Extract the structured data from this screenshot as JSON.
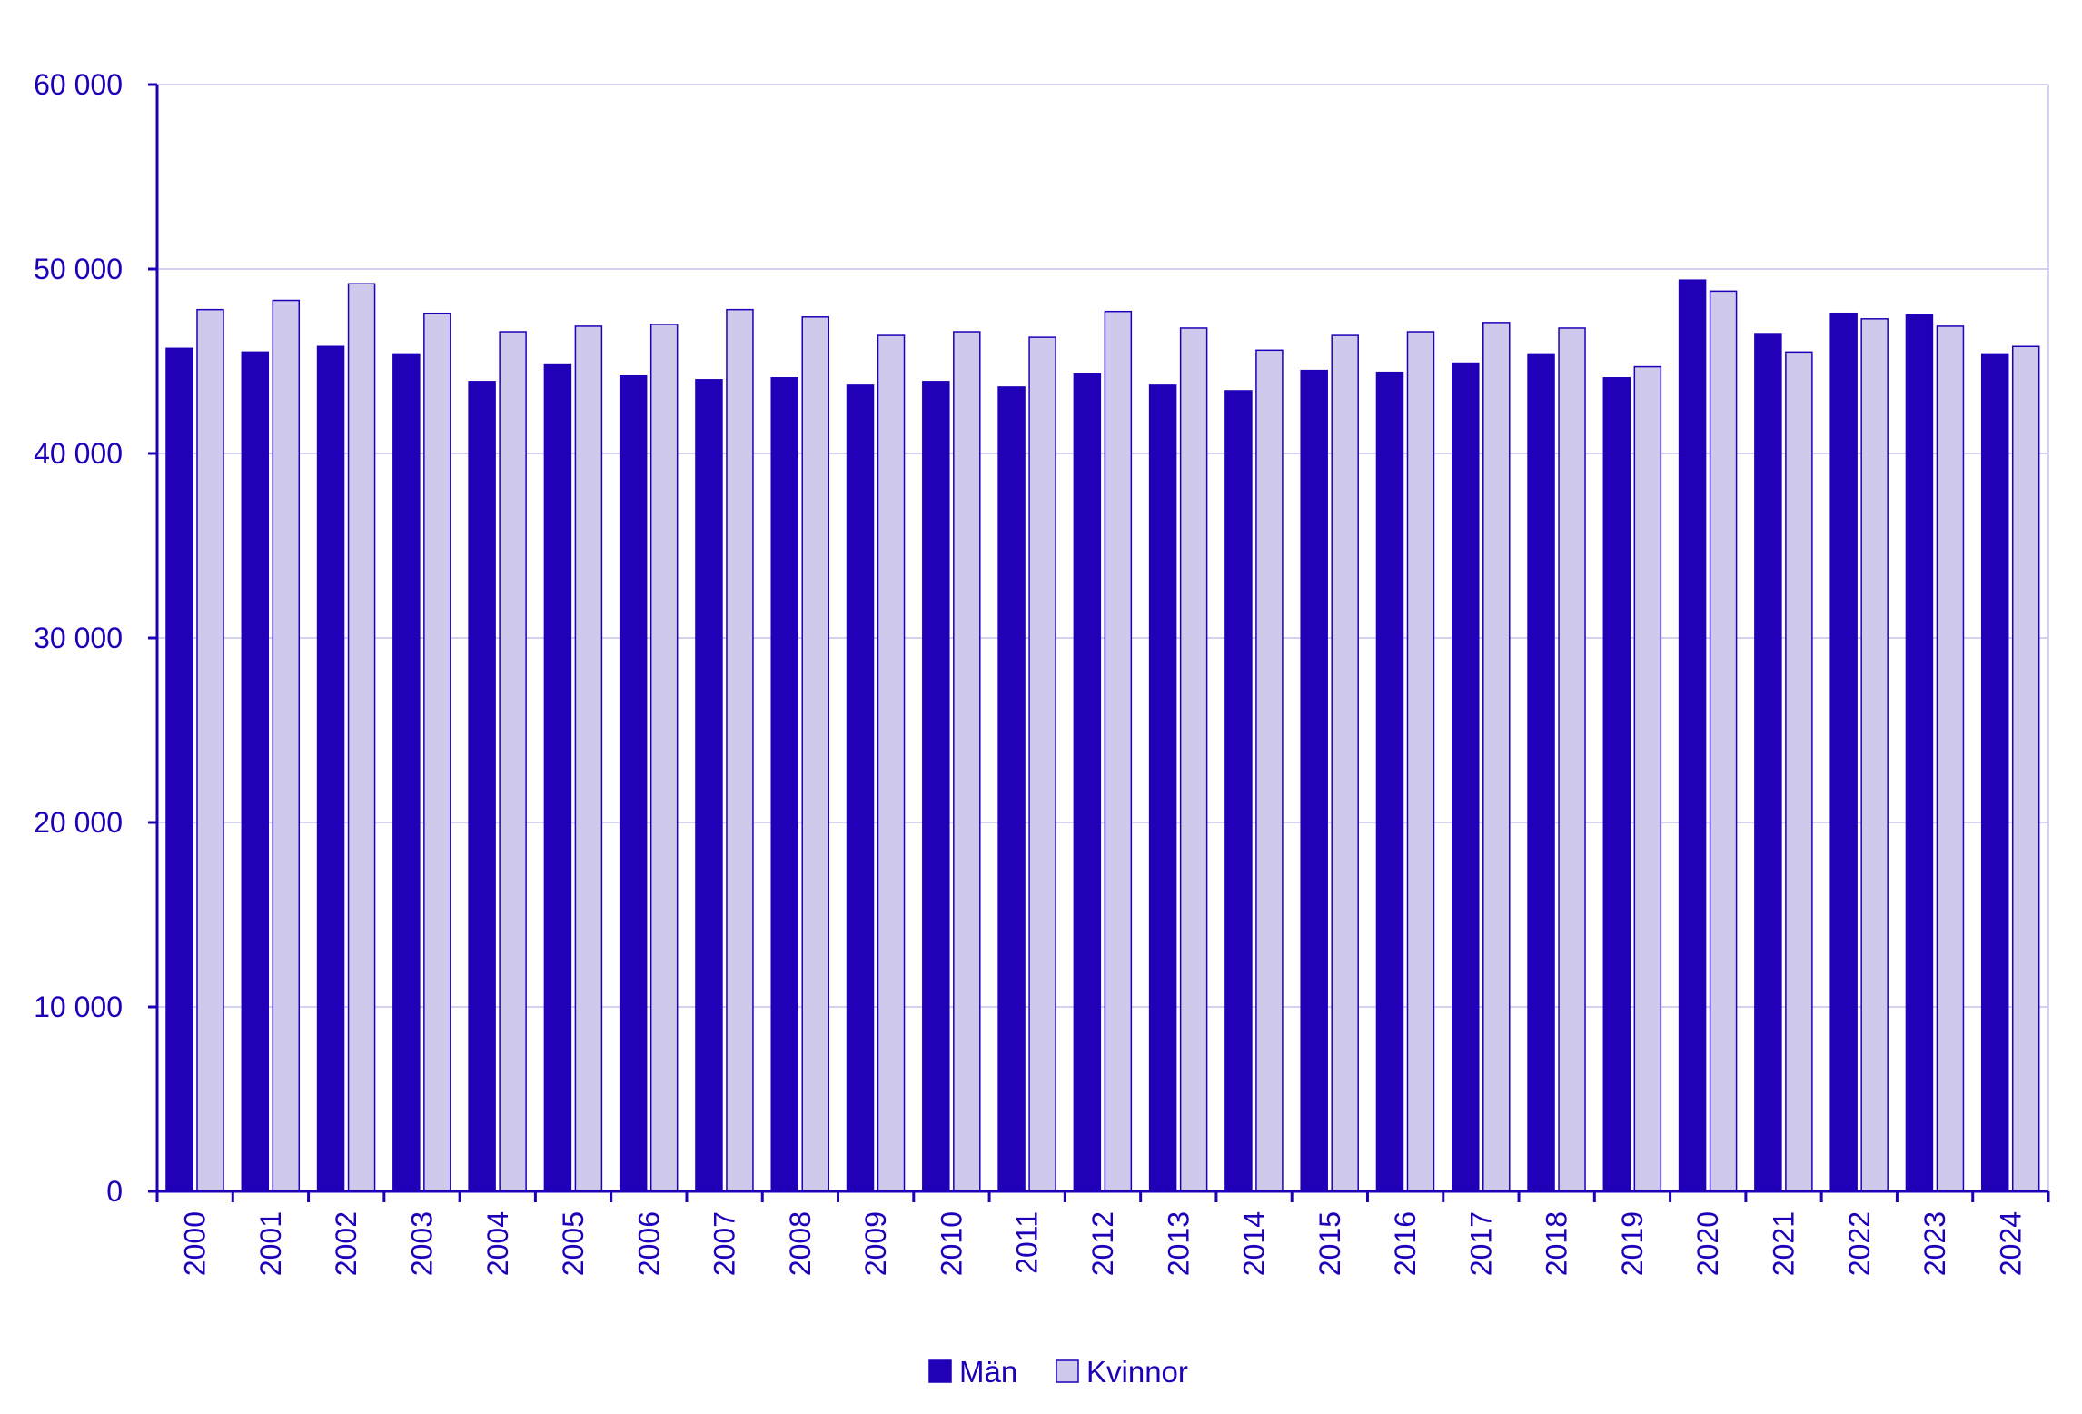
{
  "chart_data": {
    "type": "bar",
    "categories": [
      "2000",
      "2001",
      "2002",
      "2003",
      "2004",
      "2005",
      "2006",
      "2007",
      "2008",
      "2009",
      "2010",
      "2011",
      "2012",
      "2013",
      "2014",
      "2015",
      "2016",
      "2017",
      "2018",
      "2019",
      "2020",
      "2021",
      "2022",
      "2023",
      "2024"
    ],
    "series": [
      {
        "name": "Män",
        "color": "#2200b8",
        "values": [
          45700,
          45500,
          45800,
          45400,
          43900,
          44800,
          44200,
          44000,
          44100,
          43700,
          43900,
          43600,
          44300,
          43700,
          43400,
          44500,
          44400,
          44900,
          45400,
          44100,
          49400,
          46500,
          47600,
          47500,
          45400
        ]
      },
      {
        "name": "Kvinnor",
        "color": "#cfc9ec",
        "values": [
          47800,
          48300,
          49200,
          47600,
          46600,
          46900,
          47000,
          47800,
          47400,
          46400,
          46600,
          46300,
          47700,
          46800,
          45600,
          46400,
          46600,
          47100,
          46800,
          44700,
          48800,
          45500,
          47300,
          46900,
          45800
        ]
      }
    ],
    "title": "",
    "xlabel": "",
    "ylabel": "",
    "ylim": [
      0,
      60000
    ],
    "yticks": [
      0,
      10000,
      20000,
      30000,
      40000,
      50000,
      60000
    ],
    "ytick_labels": [
      "0",
      "10 000",
      "20 000",
      "30 000",
      "40 000",
      "50 000",
      "60 000"
    ],
    "grid": true,
    "legend_position": "bottom-center",
    "axis_color": "#1f00b8",
    "grid_color": "#d4d0f0"
  }
}
